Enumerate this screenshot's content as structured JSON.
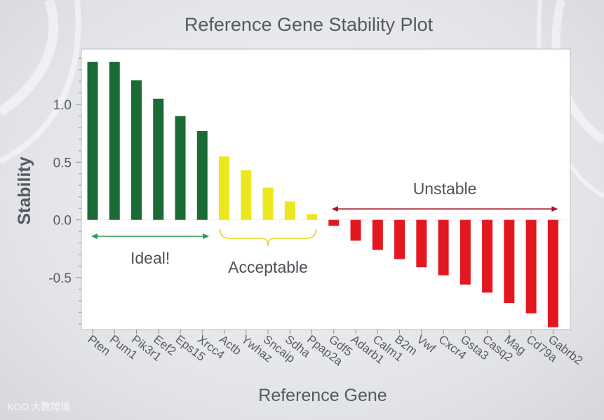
{
  "chart_data": {
    "type": "bar",
    "title": "Reference Gene Stability Plot",
    "xlabel": "Reference Gene",
    "ylabel": "Stability",
    "ylim": [
      -0.95,
      1.48
    ],
    "yticks": [
      -0.5,
      0.0,
      0.5,
      1.0
    ],
    "ytick_labels": [
      "-0.5",
      "0.0",
      "0.5",
      "1.0"
    ],
    "grid": false,
    "categories": [
      "Pten",
      "Pum1",
      "Pik3r1",
      "Eef2",
      "Eps15",
      "Xrcc4",
      "Actb",
      "Ywhaz",
      "Sncaip",
      "Sdha",
      "Ppap2a",
      "Gdf5",
      "Adarb1",
      "Calm1",
      "B2m",
      "Vwf",
      "Cxcr4",
      "Gsta3",
      "Casq2",
      "Mag",
      "Cd79a",
      "Gabrb2"
    ],
    "values": [
      1.37,
      1.37,
      1.21,
      1.05,
      0.9,
      0.77,
      0.55,
      0.43,
      0.28,
      0.16,
      0.05,
      -0.05,
      -0.18,
      -0.26,
      -0.34,
      -0.41,
      -0.48,
      -0.56,
      -0.63,
      -0.72,
      -0.81,
      -0.93
    ],
    "groups": [
      {
        "label": "Ideal!",
        "start": 0,
        "end": 5,
        "color": "#1a6b35"
      },
      {
        "label": "Acceptable",
        "start": 6,
        "end": 10,
        "color": "#ece81e"
      },
      {
        "label": "Unstable",
        "start": 11,
        "end": 21,
        "color": "#e3171f"
      }
    ],
    "annotation_colors": {
      "ideal": "#2f9a4c",
      "acceptable": "#e3d81c",
      "unstable": "#a1162a"
    }
  },
  "watermark": {
    "text": "大数跨境",
    "logo": "KOO"
  }
}
